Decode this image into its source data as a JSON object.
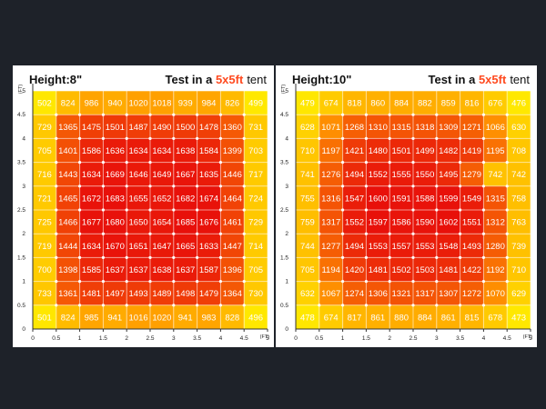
{
  "colors": {
    "background": "#1e2229",
    "accent": "#ff4a1f",
    "low": "#ffe800",
    "high": "#e8100a"
  },
  "chart_data": [
    {
      "type": "heatmap",
      "title": "Height:8\"",
      "subtitle_prefix": "Test in a",
      "subtitle_highlight": "5x5ft",
      "subtitle_suffix": "tent",
      "x_ticks": [
        "0",
        "0.5",
        "1",
        "1.5",
        "2",
        "2.5",
        "3",
        "3.5",
        "4",
        "4.5",
        "5"
      ],
      "y_ticks": [
        "0",
        "0.5",
        "1",
        "1.5",
        "2",
        "2.5",
        "3",
        "3.5",
        "4",
        "4.5",
        "5"
      ],
      "x_unit": "(FT)",
      "y_unit": "(FT)",
      "xlim": [
        0,
        5
      ],
      "ylim": [
        0,
        5
      ],
      "values": [
        [
          502,
          824,
          986,
          940,
          1020,
          1018,
          939,
          984,
          826,
          499
        ],
        [
          729,
          1365,
          1475,
          1501,
          1487,
          1490,
          1500,
          1478,
          1360,
          731
        ],
        [
          705,
          1401,
          1586,
          1636,
          1634,
          1634,
          1638,
          1584,
          1399,
          703
        ],
        [
          716,
          1443,
          1634,
          1669,
          1646,
          1649,
          1667,
          1635,
          1446,
          717
        ],
        [
          721,
          1465,
          1672,
          1683,
          1655,
          1652,
          1682,
          1674,
          1464,
          724
        ],
        [
          725,
          1466,
          1677,
          1680,
          1650,
          1654,
          1685,
          1676,
          1461,
          729
        ],
        [
          719,
          1444,
          1634,
          1670,
          1651,
          1647,
          1665,
          1633,
          1447,
          714
        ],
        [
          700,
          1398,
          1585,
          1637,
          1637,
          1638,
          1637,
          1587,
          1396,
          705
        ],
        [
          733,
          1361,
          1481,
          1497,
          1493,
          1489,
          1498,
          1479,
          1364,
          730
        ],
        [
          501,
          824,
          985,
          941,
          1016,
          1020,
          941,
          983,
          828,
          496
        ]
      ]
    },
    {
      "type": "heatmap",
      "title": "Height:10\"",
      "subtitle_prefix": "Test in a",
      "subtitle_highlight": "5x5ft",
      "subtitle_suffix": "tent",
      "x_ticks": [
        "0",
        "0.5",
        "1",
        "1.5",
        "2",
        "2.5",
        "3",
        "3.5",
        "4",
        "4.5",
        "5"
      ],
      "y_ticks": [
        "0",
        "0.5",
        "1",
        "1.5",
        "2",
        "2.5",
        "3",
        "3.5",
        "4",
        "4.5",
        "5"
      ],
      "x_unit": "(FT)",
      "y_unit": "(FT)",
      "xlim": [
        0,
        5
      ],
      "ylim": [
        0,
        5
      ],
      "values": [
        [
          479,
          674,
          818,
          860,
          884,
          882,
          859,
          816,
          676,
          476
        ],
        [
          628,
          1071,
          1268,
          1310,
          1315,
          1318,
          1309,
          1271,
          1066,
          630
        ],
        [
          710,
          1197,
          1421,
          1480,
          1501,
          1499,
          1482,
          1419,
          1195,
          708
        ],
        [
          741,
          1276,
          1494,
          1552,
          1555,
          1550,
          1495,
          1279,
          742,
          742
        ],
        [
          755,
          1316,
          1547,
          1600,
          1591,
          1588,
          1599,
          1549,
          1315,
          758
        ],
        [
          759,
          1317,
          1552,
          1597,
          1586,
          1590,
          1602,
          1551,
          1312,
          763
        ],
        [
          744,
          1277,
          1494,
          1553,
          1557,
          1553,
          1548,
          1493,
          1280,
          739
        ],
        [
          705,
          1194,
          1420,
          1481,
          1502,
          1503,
          1481,
          1422,
          1192,
          710
        ],
        [
          632,
          1067,
          1274,
          1306,
          1321,
          1317,
          1307,
          1272,
          1070,
          629
        ],
        [
          478,
          674,
          817,
          861,
          880,
          884,
          861,
          815,
          678,
          473
        ]
      ]
    }
  ]
}
